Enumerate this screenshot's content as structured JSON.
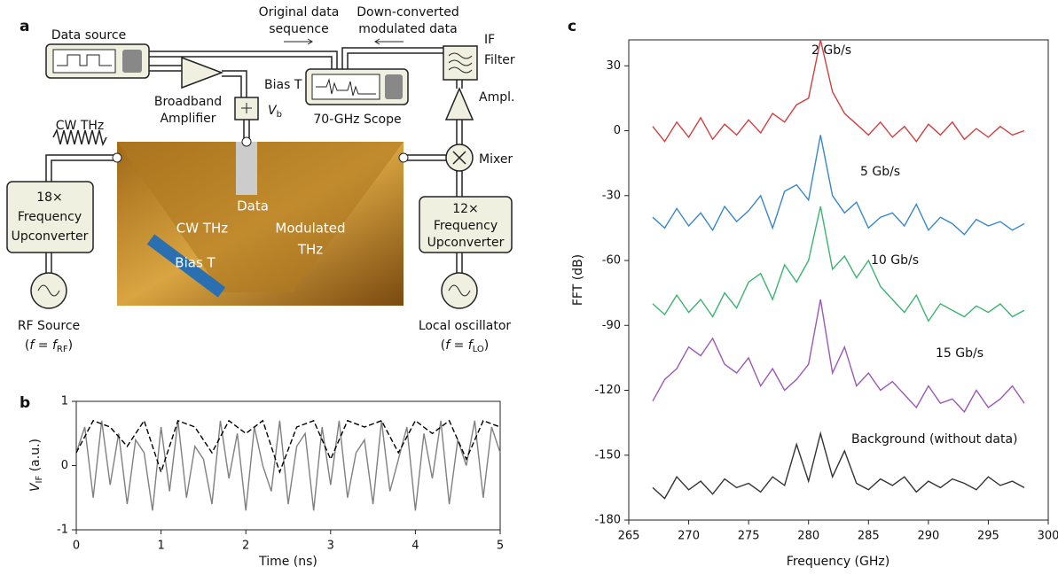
{
  "panels": {
    "a": "a",
    "b": "b",
    "c": "c"
  },
  "diagram": {
    "data_source": "Data source",
    "original_data": [
      "Original data",
      "sequence"
    ],
    "down_converted": [
      "Down-converted",
      "modulated data"
    ],
    "if_filter": [
      "IF",
      "Filter"
    ],
    "amplifier": [
      "Broadband",
      "Amplifier"
    ],
    "bias_t": "Bias T",
    "vb": [
      "V",
      "b"
    ],
    "scope": "70-GHz Scope",
    "ampl": "Ampl.",
    "cw_thz": "CW THz",
    "mixer": "Mixer",
    "upconverter_18": [
      "18×",
      "Frequency",
      "Upconverter"
    ],
    "upconverter_12": [
      "12×",
      "Frequency",
      "Upconverter"
    ],
    "photo_labels": {
      "data": "Data",
      "cw_thz": "CW THz",
      "modulated": [
        "Modulated",
        "THz"
      ],
      "bias_t": "Bias T"
    },
    "rf_source": "RF Source",
    "rf_freq": [
      "(",
      "f",
      " = ",
      "f",
      "RF",
      ")"
    ],
    "local_oscillator": "Local oscillator",
    "lo_freq": [
      "(",
      "f",
      " = ",
      "f",
      "LO",
      ")"
    ]
  },
  "chart_data": [
    {
      "type": "line",
      "xlabel": "Time (ns)",
      "ylabel": [
        "V",
        "IF",
        " (a.u.)"
      ],
      "xlim": [
        0,
        5
      ],
      "ylim": [
        -1,
        1
      ],
      "xticks": [
        0,
        1,
        2,
        3,
        4,
        5
      ],
      "yticks": [
        -1,
        0,
        1
      ],
      "series": [
        {
          "color": "#808080",
          "linestyle": "solid",
          "x": [
            0,
            0.1,
            0.2,
            0.3,
            0.4,
            0.5,
            0.6,
            0.7,
            0.8,
            0.9,
            1,
            1.1,
            1.2,
            1.3,
            1.4,
            1.5,
            1.6,
            1.7,
            1.8,
            1.9,
            2,
            2.1,
            2.2,
            2.3,
            2.4,
            2.5,
            2.6,
            2.7,
            2.8,
            2.9,
            3,
            3.1,
            3.2,
            3.3,
            3.4,
            3.5,
            3.6,
            3.7,
            3.8,
            3.9,
            4,
            4.1,
            4.2,
            4.3,
            4.4,
            4.5,
            4.6,
            4.7,
            4.8,
            4.9,
            5
          ],
          "values": [
            0.2,
            0.6,
            -0.5,
            0.7,
            -0.3,
            0.5,
            -0.6,
            0.4,
            0.2,
            -0.7,
            0.6,
            -0.4,
            0.7,
            -0.5,
            0.3,
            0.1,
            -0.6,
            0.7,
            -0.2,
            0.5,
            -0.7,
            0.6,
            0.0,
            -0.4,
            0.7,
            -0.6,
            0.3,
            0.5,
            -0.7,
            0.6,
            -0.3,
            0.7,
            -0.5,
            0.2,
            0.4,
            -0.6,
            0.7,
            -0.4,
            0.1,
            0.6,
            -0.7,
            0.5,
            -0.2,
            0.7,
            -0.6,
            0.4,
            0.0,
            0.7,
            -0.5,
            0.6,
            0.2
          ]
        },
        {
          "color": "#000000",
          "linestyle": "dashed",
          "x": [
            0,
            0.2,
            0.4,
            0.6,
            0.8,
            1,
            1.2,
            1.4,
            1.6,
            1.8,
            2,
            2.2,
            2.4,
            2.6,
            2.8,
            3,
            3.2,
            3.4,
            3.6,
            3.8,
            4,
            4.2,
            4.4,
            4.6,
            4.8,
            5
          ],
          "values": [
            0.2,
            0.7,
            0.6,
            0.3,
            0.7,
            -0.1,
            0.7,
            0.6,
            0.2,
            0.7,
            0.5,
            0.7,
            -0.1,
            0.6,
            0.7,
            0.1,
            0.7,
            0.6,
            0.7,
            0.2,
            0.7,
            0.5,
            0.7,
            0.1,
            0.7,
            0.6
          ]
        }
      ]
    },
    {
      "type": "line",
      "xlabel": "Frequency (GHz)",
      "ylabel": "FFT (dB)",
      "xlim": [
        265,
        300
      ],
      "ylim": [
        -180,
        42
      ],
      "xticks": [
        265,
        270,
        275,
        280,
        285,
        290,
        295,
        300
      ],
      "yticks": [
        30,
        0,
        -30,
        -60,
        -90,
        -120,
        -150,
        -180
      ],
      "x": [
        267,
        268,
        269,
        270,
        271,
        272,
        273,
        274,
        275,
        276,
        277,
        278,
        279,
        280,
        281,
        282,
        283,
        284,
        285,
        286,
        287,
        288,
        289,
        290,
        291,
        292,
        293,
        294,
        295,
        296,
        297,
        298
      ],
      "series": [
        {
          "name": "2 Gb/s",
          "color": "#d04040",
          "values": [
            2,
            -5,
            4,
            -3,
            6,
            -4,
            3,
            -2,
            5,
            -1,
            8,
            4,
            12,
            15,
            42,
            18,
            8,
            3,
            -2,
            4,
            -3,
            2,
            -5,
            3,
            -2,
            4,
            -4,
            1,
            -3,
            2,
            -2,
            0
          ]
        },
        {
          "name": "5 Gb/s",
          "color": "#3a87c8",
          "values": [
            -40,
            -45,
            -36,
            -44,
            -38,
            -46,
            -35,
            -42,
            -37,
            -30,
            -45,
            -28,
            -25,
            -32,
            -2,
            -30,
            -38,
            -33,
            -45,
            -40,
            -38,
            -44,
            -34,
            -46,
            -40,
            -43,
            -48,
            -41,
            -44,
            -42,
            -46,
            -43
          ]
        },
        {
          "name": "10 Gb/s",
          "color": "#3cb371",
          "values": [
            -80,
            -85,
            -76,
            -84,
            -78,
            -86,
            -75,
            -82,
            -70,
            -66,
            -78,
            -62,
            -70,
            -60,
            -35,
            -64,
            -58,
            -68,
            -60,
            -72,
            -78,
            -84,
            -76,
            -88,
            -80,
            -83,
            -86,
            -81,
            -84,
            -80,
            -86,
            -83
          ]
        },
        {
          "name": "15 Gb/s",
          "color": "#9b59b6",
          "values": [
            -125,
            -115,
            -110,
            -100,
            -104,
            -96,
            -108,
            -112,
            -105,
            -118,
            -110,
            -120,
            -115,
            -108,
            -78,
            -112,
            -100,
            -118,
            -112,
            -120,
            -116,
            -122,
            -128,
            -118,
            -126,
            -124,
            -130,
            -120,
            -128,
            -124,
            -118,
            -126
          ]
        },
        {
          "name": "Background (without data)",
          "color": "#333333",
          "values": [
            -165,
            -170,
            -160,
            -166,
            -162,
            -168,
            -161,
            -165,
            -163,
            -167,
            -160,
            -164,
            -145,
            -162,
            -140,
            -160,
            -148,
            -163,
            -166,
            -161,
            -164,
            -160,
            -167,
            -162,
            -165,
            -161,
            -163,
            -166,
            -160,
            -164,
            -162,
            -165
          ]
        }
      ]
    }
  ]
}
